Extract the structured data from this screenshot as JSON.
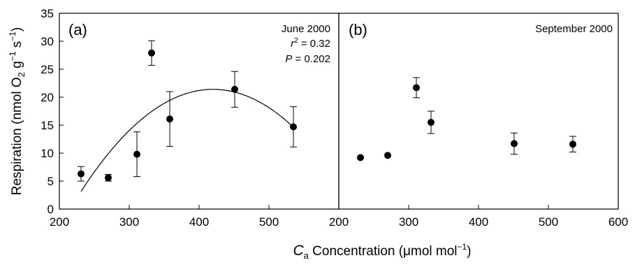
{
  "chart_data": [
    {
      "type": "scatter",
      "panel_label": "(a)",
      "annotation": {
        "date": "June 2000",
        "r2_symbol": "r",
        "r2_sup": "2",
        "r2_value": " = 0.32",
        "p_symbol": "P",
        "p_value": " = 0.202"
      },
      "xlim": [
        200,
        600
      ],
      "ylim": [
        0,
        35
      ],
      "x_ticks": [
        "200",
        "300",
        "400",
        "500"
      ],
      "y_ticks": [
        "0",
        "5",
        "10",
        "15",
        "20",
        "25",
        "30",
        "35"
      ],
      "points": [
        {
          "x": 231,
          "y": 6.3,
          "err": 1.3
        },
        {
          "x": 270,
          "y": 5.6,
          "err": 0.6
        },
        {
          "x": 311,
          "y": 9.8,
          "err": 4.0
        },
        {
          "x": 332,
          "y": 27.9,
          "err": 2.2
        },
        {
          "x": 358,
          "y": 16.1,
          "err": 4.9
        },
        {
          "x": 451,
          "y": 21.4,
          "err": 3.2
        },
        {
          "x": 535,
          "y": 14.7,
          "err": 3.6
        }
      ],
      "fit": {
        "type": "quadratic",
        "vertex_x": 420,
        "vertex_y": 21.4,
        "a": -0.000511,
        "x_range": [
          231,
          535
        ]
      }
    },
    {
      "type": "scatter",
      "panel_label": "(b)",
      "annotation": {
        "date": "September 2000"
      },
      "xlim": [
        200,
        600
      ],
      "ylim": [
        0,
        35
      ],
      "x_ticks": [
        "200",
        "300",
        "400",
        "500",
        "600"
      ],
      "points": [
        {
          "x": 231,
          "y": 9.2,
          "err": 0
        },
        {
          "x": 270,
          "y": 9.6,
          "err": 0
        },
        {
          "x": 311,
          "y": 21.7,
          "err": 1.8
        },
        {
          "x": 332,
          "y": 15.5,
          "err": 2.0
        },
        {
          "x": 451,
          "y": 11.7,
          "err": 1.9
        },
        {
          "x": 535,
          "y": 11.6,
          "err": 1.4
        }
      ]
    }
  ],
  "axes": {
    "y_title_main": "Respiration (nmol O",
    "y_title_sub": "2",
    "y_title_mid": " g",
    "y_title_sup1": "−1",
    "y_title_s": " s",
    "y_title_sup2": "−1",
    "y_title_end": ")",
    "x_title_c": "C",
    "x_title_sub": "a",
    "x_title_main": " Concentration (μmol mol",
    "x_title_sup": "−1",
    "x_title_end": ")"
  }
}
